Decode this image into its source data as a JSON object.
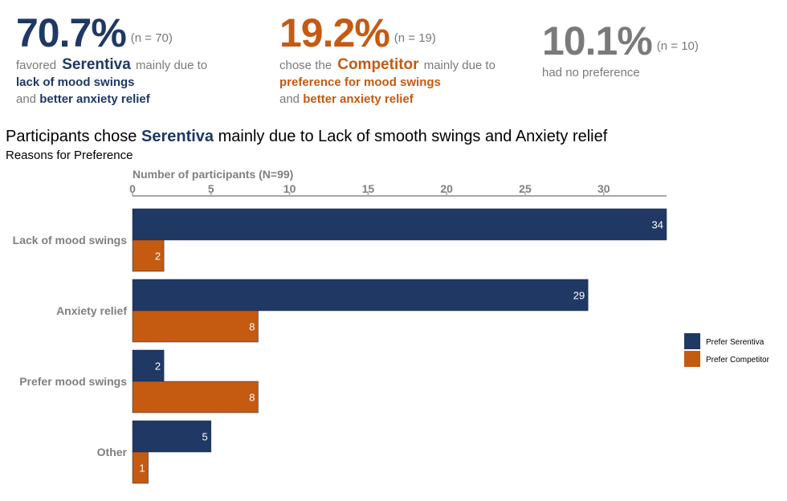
{
  "header_stats": [
    {
      "percent": "70.7%",
      "n": "(n = 70)",
      "line1_prefix": "favored",
      "brand": "Serentiva",
      "line1_suffix": "mainly due to",
      "reason1": "lack of mood swings",
      "and_word": "and",
      "reason2": "better anxiety relief",
      "color": "#1f3864"
    },
    {
      "percent": "19.2%",
      "n": "(n = 19)",
      "line1_prefix": "chose the",
      "brand": "Competitor",
      "line1_suffix": "mainly due to",
      "reason1": "preference for mood swings",
      "and_word": "and",
      "reason2": "better anxiety relief",
      "color": "#c55a11"
    },
    {
      "percent": "10.1%",
      "n": "(n = 10)",
      "caption": "had no preference",
      "color": "#7a7a7a"
    }
  ],
  "title_parts": {
    "before": "Participants chose",
    "highlight": "Serentiva",
    "after": "mainly due to Lack of smooth swings and Anxiety relief"
  },
  "chart_data": {
    "type": "bar",
    "orientation": "horizontal",
    "title": "Participants chose Serentiva mainly due to Lack of smooth swings and Anxiety relief",
    "subtitle": "Reasons for Preference",
    "xlabel": "Number of participants (N=99)",
    "x_axis_position": "top",
    "xlim": [
      0,
      34
    ],
    "xticks": [
      0,
      5,
      10,
      15,
      20,
      25,
      30
    ],
    "categories": [
      "Lack of mood swings",
      "Anxiety relief",
      "Prefer mood swings",
      "Other"
    ],
    "series": [
      {
        "name": "Prefer Serentiva",
        "color": "#203864",
        "values": [
          34,
          29,
          2,
          5
        ]
      },
      {
        "name": "Prefer Competitor",
        "color": "#c55a11",
        "values": [
          2,
          8,
          8,
          1
        ]
      }
    ],
    "data_labels": true,
    "grid": false,
    "legend_position": "right"
  }
}
